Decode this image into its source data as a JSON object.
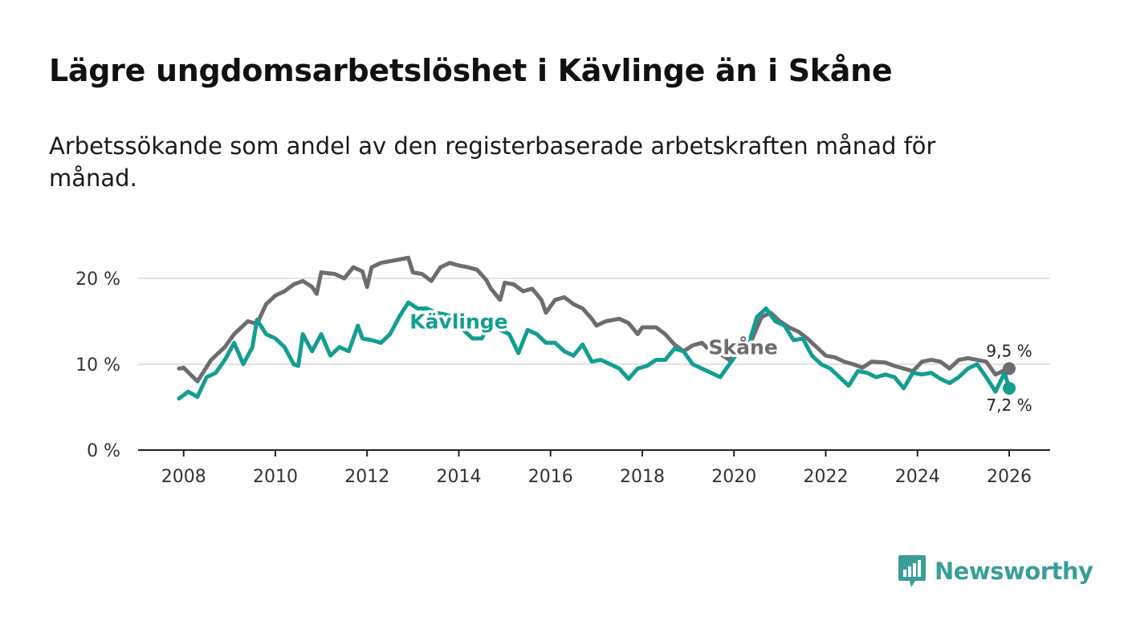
{
  "header": {
    "title": "Lägre ungdomsarbetslöshet i Kävlinge än i Skåne",
    "subtitle": "Arbetssökande som andel av den registerbaserade arbetskraften månad för månad."
  },
  "brand": {
    "name": "Newsworthy",
    "color": "#3a9e98"
  },
  "chart_data": {
    "type": "line",
    "title": "Lägre ungdomsarbetslöshet i Kävlinge än i Skåne",
    "xlabel": "",
    "ylabel": "",
    "xlim": [
      2007.9,
      2026.0
    ],
    "ylim": [
      0,
      20
    ],
    "x_ticks": [
      2008,
      2010,
      2012,
      2014,
      2016,
      2018,
      2020,
      2022,
      2024,
      2026
    ],
    "y_ticks": [
      {
        "value": 0,
        "label": "0 %"
      },
      {
        "value": 10,
        "label": "10 %"
      },
      {
        "value": 20,
        "label": "20 %"
      }
    ],
    "grid": true,
    "series": [
      {
        "name": "Skåne",
        "color": "#6d6d70",
        "end_label": "9,5 %",
        "points": [
          [
            2007.9,
            9.5
          ],
          [
            2008.0,
            9.6
          ],
          [
            2008.3,
            8.0
          ],
          [
            2008.6,
            10.5
          ],
          [
            2008.9,
            12.0
          ],
          [
            2009.1,
            13.5
          ],
          [
            2009.4,
            15.0
          ],
          [
            2009.6,
            14.7
          ],
          [
            2009.8,
            17.0
          ],
          [
            2010.0,
            18.0
          ],
          [
            2010.2,
            18.5
          ],
          [
            2010.4,
            19.3
          ],
          [
            2010.6,
            19.7
          ],
          [
            2010.8,
            19.0
          ],
          [
            2010.9,
            18.2
          ],
          [
            2011.0,
            20.7
          ],
          [
            2011.3,
            20.5
          ],
          [
            2011.5,
            20.0
          ],
          [
            2011.7,
            21.3
          ],
          [
            2011.9,
            20.8
          ],
          [
            2012.0,
            19.0
          ],
          [
            2012.1,
            21.3
          ],
          [
            2012.3,
            21.8
          ],
          [
            2012.5,
            22.0
          ],
          [
            2012.7,
            22.2
          ],
          [
            2012.9,
            22.4
          ],
          [
            2013.0,
            20.7
          ],
          [
            2013.2,
            20.5
          ],
          [
            2013.4,
            19.7
          ],
          [
            2013.6,
            21.3
          ],
          [
            2013.8,
            21.8
          ],
          [
            2014.0,
            21.5
          ],
          [
            2014.2,
            21.3
          ],
          [
            2014.4,
            21.0
          ],
          [
            2014.6,
            19.8
          ],
          [
            2014.7,
            18.8
          ],
          [
            2014.9,
            17.5
          ],
          [
            2015.0,
            19.5
          ],
          [
            2015.2,
            19.3
          ],
          [
            2015.4,
            18.5
          ],
          [
            2015.6,
            18.8
          ],
          [
            2015.8,
            17.5
          ],
          [
            2015.9,
            16.0
          ],
          [
            2016.1,
            17.5
          ],
          [
            2016.3,
            17.8
          ],
          [
            2016.5,
            17.0
          ],
          [
            2016.7,
            16.5
          ],
          [
            2016.9,
            15.3
          ],
          [
            2017.0,
            14.5
          ],
          [
            2017.2,
            15.0
          ],
          [
            2017.5,
            15.3
          ],
          [
            2017.7,
            14.8
          ],
          [
            2017.9,
            13.5
          ],
          [
            2018.0,
            14.3
          ],
          [
            2018.3,
            14.3
          ],
          [
            2018.5,
            13.5
          ],
          [
            2018.7,
            12.3
          ],
          [
            2018.9,
            11.5
          ],
          [
            2019.1,
            12.2
          ],
          [
            2019.3,
            12.5
          ],
          [
            2019.5,
            11.5
          ],
          [
            2019.7,
            11.2
          ],
          [
            2019.9,
            10.5
          ],
          [
            2020.0,
            11.0
          ],
          [
            2020.2,
            11.3
          ],
          [
            2020.4,
            13.0
          ],
          [
            2020.6,
            15.5
          ],
          [
            2020.8,
            16.0
          ],
          [
            2021.0,
            15.0
          ],
          [
            2021.2,
            14.3
          ],
          [
            2021.4,
            13.8
          ],
          [
            2021.6,
            13.0
          ],
          [
            2021.8,
            12.0
          ],
          [
            2022.0,
            11.0
          ],
          [
            2022.2,
            10.8
          ],
          [
            2022.4,
            10.3
          ],
          [
            2022.6,
            10.0
          ],
          [
            2022.8,
            9.6
          ],
          [
            2023.0,
            10.3
          ],
          [
            2023.3,
            10.2
          ],
          [
            2023.5,
            9.8
          ],
          [
            2023.7,
            9.5
          ],
          [
            2023.9,
            9.2
          ],
          [
            2024.1,
            10.3
          ],
          [
            2024.3,
            10.5
          ],
          [
            2024.5,
            10.3
          ],
          [
            2024.7,
            9.5
          ],
          [
            2024.9,
            10.5
          ],
          [
            2025.1,
            10.7
          ],
          [
            2025.3,
            10.5
          ],
          [
            2025.5,
            10.3
          ],
          [
            2025.7,
            8.8
          ],
          [
            2025.9,
            9.3
          ],
          [
            2026.0,
            9.5
          ]
        ]
      },
      {
        "name": "Kävlinge",
        "color": "#139e91",
        "end_label": "7,2 %",
        "points": [
          [
            2007.9,
            6.0
          ],
          [
            2008.1,
            6.8
          ],
          [
            2008.3,
            6.2
          ],
          [
            2008.5,
            8.5
          ],
          [
            2008.7,
            9.0
          ],
          [
            2008.9,
            10.5
          ],
          [
            2009.1,
            12.5
          ],
          [
            2009.3,
            10.0
          ],
          [
            2009.5,
            12.0
          ],
          [
            2009.6,
            15.2
          ],
          [
            2009.8,
            13.5
          ],
          [
            2010.0,
            13.0
          ],
          [
            2010.2,
            12.0
          ],
          [
            2010.4,
            10.0
          ],
          [
            2010.5,
            9.8
          ],
          [
            2010.6,
            13.5
          ],
          [
            2010.8,
            11.5
          ],
          [
            2011.0,
            13.5
          ],
          [
            2011.2,
            11.0
          ],
          [
            2011.4,
            12.0
          ],
          [
            2011.6,
            11.5
          ],
          [
            2011.8,
            14.5
          ],
          [
            2011.9,
            13.0
          ],
          [
            2012.1,
            12.8
          ],
          [
            2012.3,
            12.5
          ],
          [
            2012.5,
            13.5
          ],
          [
            2012.7,
            15.5
          ],
          [
            2012.9,
            17.2
          ],
          [
            2013.1,
            16.5
          ],
          [
            2013.3,
            16.5
          ],
          [
            2013.5,
            16.0
          ],
          [
            2013.7,
            15.8
          ],
          [
            2013.9,
            15.5
          ],
          [
            2014.1,
            14.0
          ],
          [
            2014.3,
            13.0
          ],
          [
            2014.5,
            13.0
          ],
          [
            2014.7,
            15.0
          ],
          [
            2014.9,
            14.0
          ],
          [
            2015.1,
            13.5
          ],
          [
            2015.3,
            11.3
          ],
          [
            2015.5,
            14.0
          ],
          [
            2015.7,
            13.5
          ],
          [
            2015.9,
            12.5
          ],
          [
            2016.1,
            12.5
          ],
          [
            2016.3,
            11.5
          ],
          [
            2016.5,
            11.0
          ],
          [
            2016.7,
            12.3
          ],
          [
            2016.9,
            10.3
          ],
          [
            2017.1,
            10.5
          ],
          [
            2017.3,
            10.0
          ],
          [
            2017.5,
            9.5
          ],
          [
            2017.7,
            8.3
          ],
          [
            2017.9,
            9.5
          ],
          [
            2018.1,
            9.8
          ],
          [
            2018.3,
            10.5
          ],
          [
            2018.5,
            10.5
          ],
          [
            2018.7,
            11.8
          ],
          [
            2018.9,
            11.5
          ],
          [
            2019.1,
            10.0
          ],
          [
            2019.3,
            9.5
          ],
          [
            2019.5,
            9.0
          ],
          [
            2019.7,
            8.5
          ],
          [
            2019.9,
            10.0
          ],
          [
            2020.1,
            11.5
          ],
          [
            2020.3,
            12.0
          ],
          [
            2020.5,
            15.5
          ],
          [
            2020.7,
            16.5
          ],
          [
            2020.9,
            15.0
          ],
          [
            2021.1,
            14.5
          ],
          [
            2021.3,
            12.8
          ],
          [
            2021.5,
            13.0
          ],
          [
            2021.7,
            11.0
          ],
          [
            2021.9,
            10.0
          ],
          [
            2022.1,
            9.5
          ],
          [
            2022.3,
            8.5
          ],
          [
            2022.5,
            7.5
          ],
          [
            2022.7,
            9.2
          ],
          [
            2022.9,
            9.0
          ],
          [
            2023.1,
            8.5
          ],
          [
            2023.3,
            8.8
          ],
          [
            2023.5,
            8.5
          ],
          [
            2023.7,
            7.2
          ],
          [
            2023.9,
            9.0
          ],
          [
            2024.1,
            8.8
          ],
          [
            2024.3,
            9.0
          ],
          [
            2024.5,
            8.3
          ],
          [
            2024.7,
            7.8
          ],
          [
            2024.9,
            8.5
          ],
          [
            2025.1,
            9.5
          ],
          [
            2025.3,
            10.0
          ],
          [
            2025.5,
            8.5
          ],
          [
            2025.7,
            6.8
          ],
          [
            2025.9,
            9.0
          ],
          [
            2026.0,
            7.2
          ]
        ]
      }
    ],
    "annotations": [
      {
        "text": "Kävlinge",
        "series": "Kävlinge",
        "x": 2014.0,
        "y": 15.0
      },
      {
        "text": "Skåne",
        "series": "Skåne",
        "x": 2020.2,
        "y": 12.0
      }
    ]
  }
}
